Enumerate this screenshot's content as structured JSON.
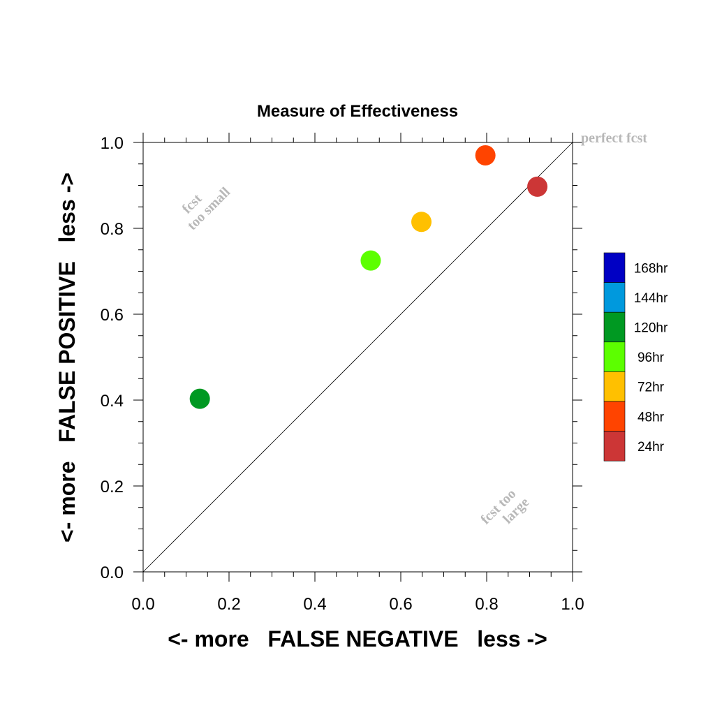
{
  "chart_data": {
    "type": "scatter",
    "title": "Measure of Effectiveness",
    "xlabel": "<- more   FALSE NEGATIVE   less ->",
    "ylabel": "<- more   FALSE POSITIVE   less ->",
    "xlim": [
      0,
      1
    ],
    "ylim": [
      0,
      1
    ],
    "x_ticks": [
      "0.0",
      "0.2",
      "0.4",
      "0.6",
      "0.8",
      "1.0"
    ],
    "y_ticks": [
      "0.0",
      "0.2",
      "0.4",
      "0.6",
      "0.8",
      "1.0"
    ],
    "grid": false,
    "reference_line": "y = x",
    "annotations": {
      "perfect": "perfect fcst",
      "small_line1": "fcst",
      "small_line2": "too small",
      "large_line1": "fcst too",
      "large_line2": "large"
    },
    "legend_placement": "right",
    "legend": [
      {
        "label": "168hr",
        "color": "#0000c4"
      },
      {
        "label": "144hr",
        "color": "#0099dd"
      },
      {
        "label": "120hr",
        "color": "#009922"
      },
      {
        "label": "96hr",
        "color": "#5cff00"
      },
      {
        "label": "72hr",
        "color": "#ffc000"
      },
      {
        "label": "48hr",
        "color": "#ff4400"
      },
      {
        "label": "24hr",
        "color": "#cc3636"
      }
    ],
    "points": [
      {
        "series": "120hr",
        "x": 0.132,
        "y": 0.403,
        "color": "#009922"
      },
      {
        "series": "96hr",
        "x": 0.53,
        "y": 0.725,
        "color": "#5cff00"
      },
      {
        "series": "72hr",
        "x": 0.648,
        "y": 0.815,
        "color": "#ffc000"
      },
      {
        "series": "48hr",
        "x": 0.797,
        "y": 0.97,
        "color": "#ff4400"
      },
      {
        "series": "24hr",
        "x": 0.918,
        "y": 0.897,
        "color": "#cc3636"
      }
    ]
  }
}
